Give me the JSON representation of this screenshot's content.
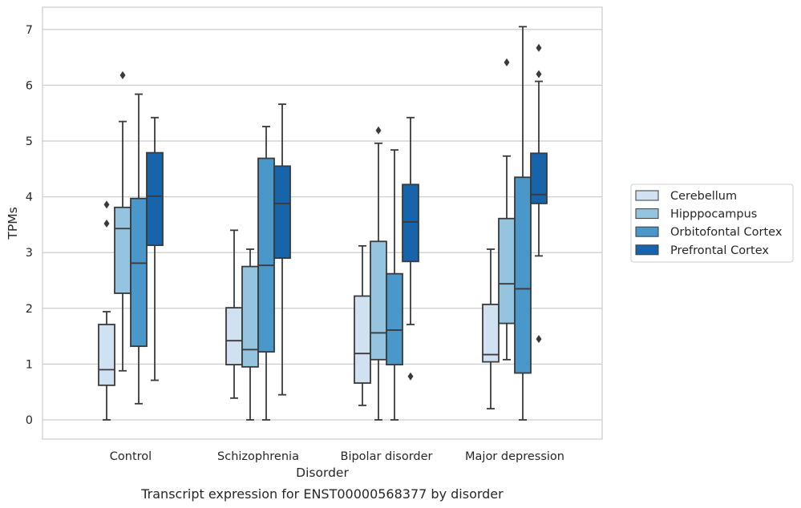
{
  "chart_data": {
    "type": "box",
    "title": "",
    "caption": "Transcript expression for ENST00000568377 by disorder",
    "xlabel": "Disorder",
    "ylabel": "TPMs",
    "ylim": [
      -0.35,
      7.4
    ],
    "yticks": [
      0,
      1,
      2,
      3,
      4,
      5,
      6,
      7
    ],
    "grid": "horizontal",
    "legend_position": "right",
    "categories": [
      "Control",
      "Schizophrenia",
      "Bipolar disorder",
      "Major depression"
    ],
    "series": [
      {
        "name": "Cerebellum",
        "color": "#d0e1f2",
        "boxes": [
          {
            "whislo": 0.0,
            "q1": 0.62,
            "med": 0.9,
            "q3": 1.71,
            "whishi": 1.94,
            "fliers": [
              3.86,
              3.52
            ]
          },
          {
            "whislo": 0.39,
            "q1": 0.99,
            "med": 1.42,
            "q3": 2.01,
            "whishi": 3.4,
            "fliers": []
          },
          {
            "whislo": 0.26,
            "q1": 0.66,
            "med": 1.19,
            "q3": 2.22,
            "whishi": 3.12,
            "fliers": []
          },
          {
            "whislo": 0.2,
            "q1": 1.04,
            "med": 1.17,
            "q3": 2.07,
            "whishi": 3.06,
            "fliers": []
          }
        ]
      },
      {
        "name": "Hipppocampus",
        "color": "#94c4df",
        "boxes": [
          {
            "whislo": 0.88,
            "q1": 2.27,
            "med": 3.43,
            "q3": 3.81,
            "whishi": 5.35,
            "fliers": [
              6.18
            ]
          },
          {
            "whislo": 0.0,
            "q1": 0.95,
            "med": 1.26,
            "q3": 2.75,
            "whishi": 3.06,
            "fliers": []
          },
          {
            "whislo": 0.0,
            "q1": 1.08,
            "med": 1.56,
            "q3": 3.2,
            "whishi": 4.96,
            "fliers": [
              5.19
            ]
          },
          {
            "whislo": 1.08,
            "q1": 1.73,
            "med": 2.44,
            "q3": 3.61,
            "whishi": 4.73,
            "fliers": [
              6.41
            ]
          }
        ]
      },
      {
        "name": "Orbitofontal Cortex",
        "color": "#4a98c9",
        "boxes": [
          {
            "whislo": 0.29,
            "q1": 1.32,
            "med": 2.81,
            "q3": 3.97,
            "whishi": 5.84,
            "fliers": []
          },
          {
            "whislo": 0.0,
            "q1": 1.22,
            "med": 2.77,
            "q3": 4.69,
            "whishi": 5.26,
            "fliers": []
          },
          {
            "whislo": 0.0,
            "q1": 0.99,
            "med": 1.61,
            "q3": 2.62,
            "whishi": 4.84,
            "fliers": []
          },
          {
            "whislo": 0.0,
            "q1": 0.84,
            "med": 2.35,
            "q3": 4.35,
            "whishi": 7.05,
            "fliers": []
          }
        ]
      },
      {
        "name": "Prefrontal Cortex",
        "color": "#1764ab",
        "boxes": [
          {
            "whislo": 0.71,
            "q1": 3.13,
            "med": 4.01,
            "q3": 4.79,
            "whishi": 5.42,
            "fliers": []
          },
          {
            "whislo": 0.45,
            "q1": 2.9,
            "med": 3.88,
            "q3": 4.55,
            "whishi": 5.66,
            "fliers": []
          },
          {
            "whislo": 1.71,
            "q1": 2.84,
            "med": 3.55,
            "q3": 4.22,
            "whishi": 5.42,
            "fliers": [
              0.78
            ]
          },
          {
            "whislo": 2.94,
            "q1": 3.88,
            "med": 4.04,
            "q3": 4.78,
            "whishi": 6.07,
            "fliers": [
              6.67,
              6.2,
              1.45
            ]
          }
        ]
      }
    ]
  }
}
